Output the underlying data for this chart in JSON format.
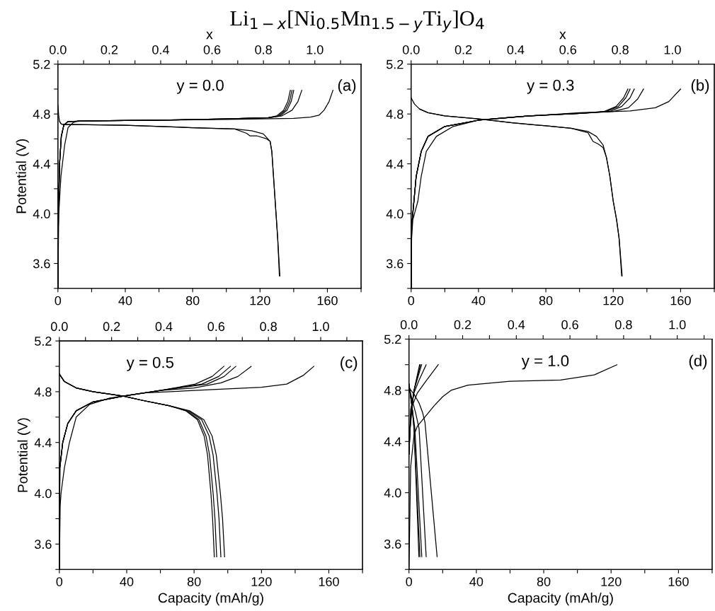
{
  "chart_data": [
    {
      "type": "line",
      "title": "Li$_{1−x}$[Ni$_{0.5}$Mn$_{1.5−y}$Ti$_{y}$]O$_{4}$",
      "ylabel": "Potential (V)",
      "x2label": "x",
      "annotations": [
        "y = 0.0",
        "(a)"
      ],
      "xlim": [
        0,
        180
      ],
      "xticks": [
        0,
        {
          "value": 20,
          "label": null
        },
        40,
        {
          "value": 60,
          "label": null
        },
        80,
        {
          "value": 100,
          "label": null
        },
        120,
        {
          "value": 140,
          "label": null
        },
        160,
        {
          "value": 180,
          "label": null
        }
      ],
      "ylim": [
        3.4,
        5.2
      ],
      "yticks": [
        {
          "value": 3.4,
          "label": null
        },
        3.6,
        {
          "value": 3.8,
          "label": null
        },
        {
          "value": 4.0,
          "label": "4.0"
        },
        {
          "value": 4.2,
          "label": null
        },
        4.4,
        {
          "value": 4.6,
          "label": null
        },
        4.8,
        {
          "value": 5.0,
          "label": null
        },
        5.2
      ],
      "x2lim": [
        0,
        1.18
      ],
      "x2ticks": [
        {
          "value": 0,
          "label": "0.0"
        },
        {
          "value": 0.1,
          "label": null
        },
        0.2,
        {
          "value": 0.3,
          "label": null
        },
        0.4,
        {
          "value": 0.5,
          "label": null
        },
        0.6,
        {
          "value": 0.7,
          "label": null
        },
        0.8,
        {
          "value": 0.9,
          "label": null
        },
        {
          "value": 1,
          "label": "1.0"
        },
        {
          "value": 1.1,
          "label": null
        }
      ],
      "series": [
        {
          "color": "#000000",
          "x": [
            0,
            0.5,
            1.8,
            4,
            6,
            9,
            12,
            20,
            60,
            100,
            140,
            150,
            155,
            158,
            161,
            163.3
          ],
          "values": [
            3.4,
            4.0,
            4.3,
            4.55,
            4.69,
            4.73,
            4.745,
            4.745,
            4.75,
            4.757,
            4.765,
            4.775,
            4.79,
            4.83,
            4.9,
            4.99
          ]
        },
        {
          "color": "#000000",
          "x": [
            0,
            0.3,
            1,
            2,
            3.5,
            6,
            20,
            60,
            100,
            125,
            130,
            134,
            136.5,
            138
          ],
          "values": [
            3.4,
            4.0,
            4.4,
            4.62,
            4.71,
            4.74,
            4.745,
            4.75,
            4.76,
            4.77,
            4.785,
            4.83,
            4.9,
            4.99
          ]
        },
        {
          "color": "#000000",
          "x": [
            0,
            0.3,
            1,
            2,
            3.5,
            6,
            20,
            60,
            100,
            125,
            131,
            135,
            137.5,
            139
          ],
          "values": [
            3.4,
            4.0,
            4.4,
            4.62,
            4.71,
            4.74,
            4.745,
            4.75,
            4.76,
            4.77,
            4.785,
            4.83,
            4.9,
            4.99
          ]
        },
        {
          "color": "#000000",
          "x": [
            0,
            0.3,
            1,
            2,
            3.5,
            6,
            20,
            60,
            100,
            126,
            132,
            136,
            138.5,
            140
          ],
          "values": [
            3.4,
            4.0,
            4.4,
            4.62,
            4.71,
            4.74,
            4.745,
            4.75,
            4.76,
            4.77,
            4.785,
            4.83,
            4.9,
            4.99
          ]
        },
        {
          "color": "#000000",
          "x": [
            0,
            0.3,
            1,
            2,
            3.5,
            6,
            20,
            60,
            100,
            125,
            133,
            139,
            142.5,
            144.8
          ],
          "values": [
            3.4,
            4.0,
            4.4,
            4.62,
            4.71,
            4.74,
            4.745,
            4.75,
            4.76,
            4.77,
            4.785,
            4.83,
            4.9,
            4.99
          ]
        },
        {
          "color": "#000000",
          "x": [
            0,
            0.5,
            1,
            2,
            4,
            10,
            40,
            80,
            105,
            115,
            122,
            126,
            127,
            128,
            129.5,
            130.5,
            131.5
          ],
          "values": [
            4.87,
            4.78,
            4.74,
            4.72,
            4.715,
            4.715,
            4.71,
            4.69,
            4.68,
            4.665,
            4.64,
            4.58,
            4.5,
            4.3,
            4.0,
            3.8,
            3.5
          ]
        },
        {
          "color": "#000000",
          "x": [
            1,
            2,
            4,
            10,
            40,
            80,
            105,
            112,
            114,
            118,
            124,
            126,
            127,
            128,
            129.5,
            130.5,
            131.8
          ],
          "values": [
            4.74,
            4.72,
            4.715,
            4.715,
            4.71,
            4.69,
            4.68,
            4.645,
            4.625,
            4.625,
            4.6,
            4.58,
            4.5,
            4.3,
            4.0,
            3.8,
            3.5
          ]
        }
      ]
    },
    {
      "type": "line",
      "x2label": "x",
      "annotations": [
        "y = 0.3",
        "(b)"
      ],
      "xlim": [
        0,
        180
      ],
      "xticks": [
        0,
        {
          "value": 20,
          "label": null
        },
        40,
        {
          "value": 60,
          "label": null
        },
        80,
        {
          "value": 100,
          "label": null
        },
        120,
        {
          "value": 140,
          "label": null
        },
        160,
        {
          "value": 180,
          "label": null
        }
      ],
      "ylim": [
        3.4,
        5.2
      ],
      "yticks": [
        {
          "value": 3.4,
          "label": null
        },
        3.6,
        {
          "value": 3.8,
          "label": null
        },
        {
          "value": 4.0,
          "label": "4.0"
        },
        {
          "value": 4.2,
          "label": null
        },
        4.4,
        {
          "value": 4.6,
          "label": null
        },
        4.8,
        {
          "value": 5.0,
          "label": null
        },
        5.2
      ],
      "x2lim": [
        0,
        1.16
      ],
      "x2ticks": [
        {
          "value": 0,
          "label": "0.0"
        },
        {
          "value": 0.1,
          "label": null
        },
        0.2,
        {
          "value": 0.3,
          "label": null
        },
        0.4,
        {
          "value": 0.5,
          "label": null
        },
        0.6,
        {
          "value": 0.7,
          "label": null
        },
        0.8,
        {
          "value": 0.9,
          "label": null
        },
        {
          "value": 1,
          "label": "1.0"
        },
        {
          "value": 1.1,
          "label": null
        }
      ],
      "series": [
        {
          "color": "#000000",
          "x": [
            0,
            0.3,
            1,
            2,
            4,
            6,
            9,
            15,
            25,
            40,
            60,
            100,
            130,
            145,
            153,
            160
          ],
          "values": [
            3.4,
            3.8,
            3.95,
            4.0,
            4.1,
            4.3,
            4.5,
            4.62,
            4.7,
            4.75,
            4.775,
            4.81,
            4.825,
            4.85,
            4.9,
            5.0
          ]
        },
        {
          "color": "#000000",
          "x": [
            0,
            0.3,
            1,
            3,
            6,
            10,
            20,
            40,
            70,
            100,
            114.7,
            121.7,
            126.2,
            128.7
          ],
          "values": [
            3.4,
            3.9,
            4.0,
            4.3,
            4.5,
            4.62,
            4.7,
            4.75,
            4.785,
            4.805,
            4.82,
            4.86,
            4.93,
            5.0
          ]
        },
        {
          "color": "#000000",
          "x": [
            0,
            0.3,
            1,
            3,
            6,
            10,
            20,
            40,
            70,
            100,
            116,
            123,
            127.5,
            130
          ],
          "values": [
            3.4,
            3.9,
            4.0,
            4.3,
            4.5,
            4.62,
            4.7,
            4.75,
            4.785,
            4.805,
            4.82,
            4.86,
            4.93,
            5.0
          ]
        },
        {
          "color": "#000000",
          "x": [
            0,
            0.3,
            1,
            3,
            6,
            10,
            20,
            40,
            70,
            100,
            118,
            125,
            130,
            132.5
          ],
          "values": [
            3.4,
            3.9,
            4.0,
            4.3,
            4.5,
            4.62,
            4.7,
            4.75,
            4.785,
            4.805,
            4.82,
            4.86,
            4.93,
            5.0
          ]
        },
        {
          "color": "#000000",
          "x": [
            0,
            0.3,
            1,
            3,
            6,
            10,
            20,
            40,
            70,
            100,
            120,
            129,
            134.5,
            138
          ],
          "values": [
            3.4,
            3.9,
            4.0,
            4.3,
            4.5,
            4.62,
            4.7,
            4.75,
            4.785,
            4.805,
            4.82,
            4.85,
            4.92,
            5.0
          ]
        },
        {
          "color": "#000000",
          "x": [
            0,
            2,
            5,
            10,
            20,
            40,
            60,
            80,
            95,
            105,
            110,
            114,
            116,
            118,
            120,
            122,
            123.5,
            125
          ],
          "values": [
            4.93,
            4.88,
            4.84,
            4.81,
            4.785,
            4.76,
            4.73,
            4.705,
            4.685,
            4.66,
            4.62,
            4.55,
            4.45,
            4.3,
            4.1,
            3.95,
            3.8,
            3.5
          ]
        },
        {
          "color": "#000000",
          "x": [
            5,
            10,
            20,
            40,
            60,
            80,
            95,
            105,
            108,
            111,
            114,
            116,
            118,
            120,
            122,
            123.5,
            125.3
          ],
          "values": [
            4.84,
            4.81,
            4.785,
            4.76,
            4.73,
            4.705,
            4.685,
            4.65,
            4.58,
            4.56,
            4.53,
            4.45,
            4.3,
            4.1,
            3.95,
            3.8,
            3.5
          ]
        }
      ]
    },
    {
      "type": "line",
      "xlabel": "Capacity (mAh/g)",
      "ylabel": "Potential (V)",
      "annotations": [
        "y = 0.5",
        "(c)"
      ],
      "xlim": [
        0,
        180
      ],
      "xticks": [
        0,
        {
          "value": 20,
          "label": null
        },
        40,
        {
          "value": 60,
          "label": null
        },
        80,
        {
          "value": 100,
          "label": null
        },
        120,
        {
          "value": 140,
          "label": null
        },
        160,
        {
          "value": 180,
          "label": null
        }
      ],
      "ylim": [
        3.4,
        5.2
      ],
      "yticks": [
        {
          "value": 3.4,
          "label": null
        },
        3.6,
        {
          "value": 3.8,
          "label": null
        },
        {
          "value": 4.0,
          "label": "4.0"
        },
        {
          "value": 4.2,
          "label": null
        },
        4.4,
        {
          "value": 4.6,
          "label": null
        },
        4.8,
        {
          "value": 5.0,
          "label": null
        },
        5.2
      ],
      "x2lim": [
        0,
        1.16
      ],
      "x2ticks": [
        {
          "value": 0,
          "label": "0.0"
        },
        {
          "value": 0.1,
          "label": null
        },
        0.2,
        {
          "value": 0.3,
          "label": null
        },
        0.4,
        {
          "value": 0.5,
          "label": null
        },
        0.6,
        {
          "value": 0.7,
          "label": null
        },
        0.8,
        {
          "value": 0.9,
          "label": null
        },
        {
          "value": 1,
          "label": "1.0"
        },
        {
          "value": 1.1,
          "label": null
        }
      ],
      "series": [
        {
          "color": "#000000",
          "x": [
            0,
            0.5,
            1,
            3,
            6,
            10,
            18,
            30,
            50,
            80,
            120,
            135,
            145,
            151.1
          ],
          "values": [
            3.4,
            3.9,
            4.0,
            4.2,
            4.4,
            4.6,
            4.7,
            4.75,
            4.79,
            4.81,
            4.835,
            4.86,
            4.93,
            5.0
          ]
        },
        {
          "color": "#000000",
          "x": [
            0,
            0.3,
            2,
            5,
            10,
            20,
            38,
            60,
            80.7,
            90.7,
            97.7
          ],
          "values": [
            3.4,
            4.2,
            4.4,
            4.55,
            4.65,
            4.72,
            4.765,
            4.81,
            4.86,
            4.92,
            5.0
          ]
        },
        {
          "color": "#000000",
          "x": [
            0,
            0.3,
            2,
            5,
            10,
            20,
            38,
            60,
            84.6,
            94.6,
            101.6
          ],
          "values": [
            3.4,
            4.2,
            4.4,
            4.55,
            4.65,
            4.72,
            4.765,
            4.81,
            4.86,
            4.92,
            5.0
          ]
        },
        {
          "color": "#000000",
          "x": [
            0,
            0.3,
            2,
            5,
            10,
            20,
            38,
            60,
            87.8,
            97.8,
            104.8
          ],
          "values": [
            3.4,
            4.2,
            4.4,
            4.55,
            4.65,
            4.72,
            4.765,
            4.81,
            4.86,
            4.92,
            5.0
          ]
        },
        {
          "color": "#000000",
          "x": [
            0,
            0.3,
            2,
            5,
            10,
            20,
            38,
            60,
            80,
            96,
            106,
            113.9
          ],
          "values": [
            3.4,
            4.2,
            4.4,
            4.55,
            4.65,
            4.72,
            4.765,
            4.81,
            4.83,
            4.87,
            4.92,
            5.0
          ]
        },
        {
          "color": "#000000",
          "x": [
            0,
            3,
            10,
            20,
            38,
            50,
            65,
            75,
            82,
            86,
            88,
            90,
            91,
            92
          ],
          "values": [
            4.94,
            4.88,
            4.83,
            4.8,
            4.765,
            4.73,
            4.69,
            4.65,
            4.58,
            4.45,
            4.3,
            4.0,
            3.8,
            3.5
          ]
        },
        {
          "color": "#000000",
          "x": [
            0,
            3,
            10,
            20,
            38,
            50,
            65,
            75.5,
            82.9,
            87.1,
            89.2,
            91.3,
            92.4,
            93.4
          ],
          "values": [
            4.94,
            4.88,
            4.83,
            4.8,
            4.765,
            4.73,
            4.69,
            4.65,
            4.58,
            4.45,
            4.3,
            4.0,
            3.8,
            3.5
          ]
        },
        {
          "color": "#000000",
          "x": [
            0,
            3,
            10,
            20,
            38,
            50,
            65,
            76.4,
            84.5,
            89.0,
            91.3,
            93.6,
            94.8,
            95.9
          ],
          "values": [
            4.94,
            4.88,
            4.83,
            4.8,
            4.765,
            4.73,
            4.69,
            4.65,
            4.58,
            4.45,
            4.3,
            4.0,
            3.8,
            3.5
          ]
        },
        {
          "color": "#000000",
          "x": [
            0,
            3,
            10,
            20,
            38,
            50,
            65,
            77.3,
            85.8,
            90.7,
            93.2,
            95.6,
            96.9,
            98.1
          ],
          "values": [
            4.94,
            4.88,
            4.83,
            4.8,
            4.765,
            4.73,
            4.69,
            4.65,
            4.58,
            4.45,
            4.3,
            4.0,
            3.8,
            3.5
          ]
        }
      ]
    },
    {
      "type": "line",
      "xlabel": "Capacity (mAh/g)",
      "annotations": [
        "y = 1.0",
        "(d)"
      ],
      "xlim": [
        0,
        180
      ],
      "xticks": [
        0,
        {
          "value": 20,
          "label": null
        },
        40,
        {
          "value": 60,
          "label": null
        },
        80,
        {
          "value": 100,
          "label": null
        },
        120,
        {
          "value": 140,
          "label": null
        },
        160,
        {
          "value": 180,
          "label": null
        }
      ],
      "ylim": [
        3.4,
        5.2
      ],
      "yticks": [
        {
          "value": 3.4,
          "label": null
        },
        3.6,
        {
          "value": 3.8,
          "label": null
        },
        {
          "value": 4.0,
          "label": "4.0"
        },
        {
          "value": 4.2,
          "label": null
        },
        4.4,
        {
          "value": 4.6,
          "label": null
        },
        4.8,
        {
          "value": 5.0,
          "label": null
        },
        5.2
      ],
      "x2lim": [
        0,
        1.13
      ],
      "x2ticks": [
        {
          "value": 0,
          "label": "0.0"
        },
        {
          "value": 0.1,
          "label": null
        },
        0.2,
        {
          "value": 0.3,
          "label": null
        },
        0.4,
        {
          "value": 0.5,
          "label": null
        },
        0.6,
        {
          "value": 0.7,
          "label": null
        },
        0.8,
        {
          "value": 0.9,
          "label": null
        },
        {
          "value": 1,
          "label": "1.0"
        },
        {
          "value": 1.1,
          "label": null
        }
      ],
      "series": [
        {
          "color": "#000000",
          "x": [
            0,
            1,
            3,
            5,
            10,
            15,
            20,
            25,
            35,
            60,
            90,
            110,
            123.5
          ],
          "values": [
            3.4,
            4.2,
            4.45,
            4.52,
            4.6,
            4.68,
            4.75,
            4.8,
            4.84,
            4.87,
            4.88,
            4.92,
            5.0
          ]
        },
        {
          "color": "#000000",
          "x": [
            0,
            1,
            3,
            6.3
          ],
          "values": [
            4.3,
            4.6,
            4.8,
            5.0
          ]
        },
        {
          "color": "#000000",
          "x": [
            0,
            1,
            3,
            6.8
          ],
          "values": [
            4.3,
            4.6,
            4.8,
            5.0
          ]
        },
        {
          "color": "#000000",
          "x": [
            0,
            1,
            3,
            7.5
          ],
          "values": [
            4.3,
            4.6,
            4.8,
            5.0
          ]
        },
        {
          "color": "#000000",
          "x": [
            0,
            1,
            3,
            6,
            10.2
          ],
          "values": [
            4.3,
            4.65,
            4.78,
            4.88,
            5.0
          ]
        },
        {
          "color": "#000000",
          "x": [
            0,
            2,
            5,
            10,
            17.4
          ],
          "values": [
            4.4,
            4.68,
            4.78,
            4.87,
            5.0
          ]
        },
        {
          "color": "#000000",
          "x": [
            0,
            1,
            2,
            3,
            5.9
          ],
          "values": [
            4.85,
            4.75,
            4.65,
            4.5,
            3.5
          ]
        },
        {
          "color": "#000000",
          "x": [
            0,
            1,
            2,
            3,
            6.5
          ],
          "values": [
            4.85,
            4.75,
            4.65,
            4.5,
            3.5
          ]
        },
        {
          "color": "#000000",
          "x": [
            0,
            1,
            2,
            3.5,
            7.6
          ],
          "values": [
            4.85,
            4.75,
            4.65,
            4.5,
            3.5
          ]
        },
        {
          "color": "#000000",
          "x": [
            0,
            2,
            4,
            6,
            10.2
          ],
          "values": [
            4.83,
            4.72,
            4.62,
            4.5,
            3.5
          ]
        },
        {
          "color": "#000000",
          "x": [
            0,
            3,
            6,
            8,
            9.5,
            16.7
          ],
          "values": [
            4.82,
            4.77,
            4.7,
            4.63,
            4.55,
            3.5
          ]
        }
      ]
    }
  ]
}
